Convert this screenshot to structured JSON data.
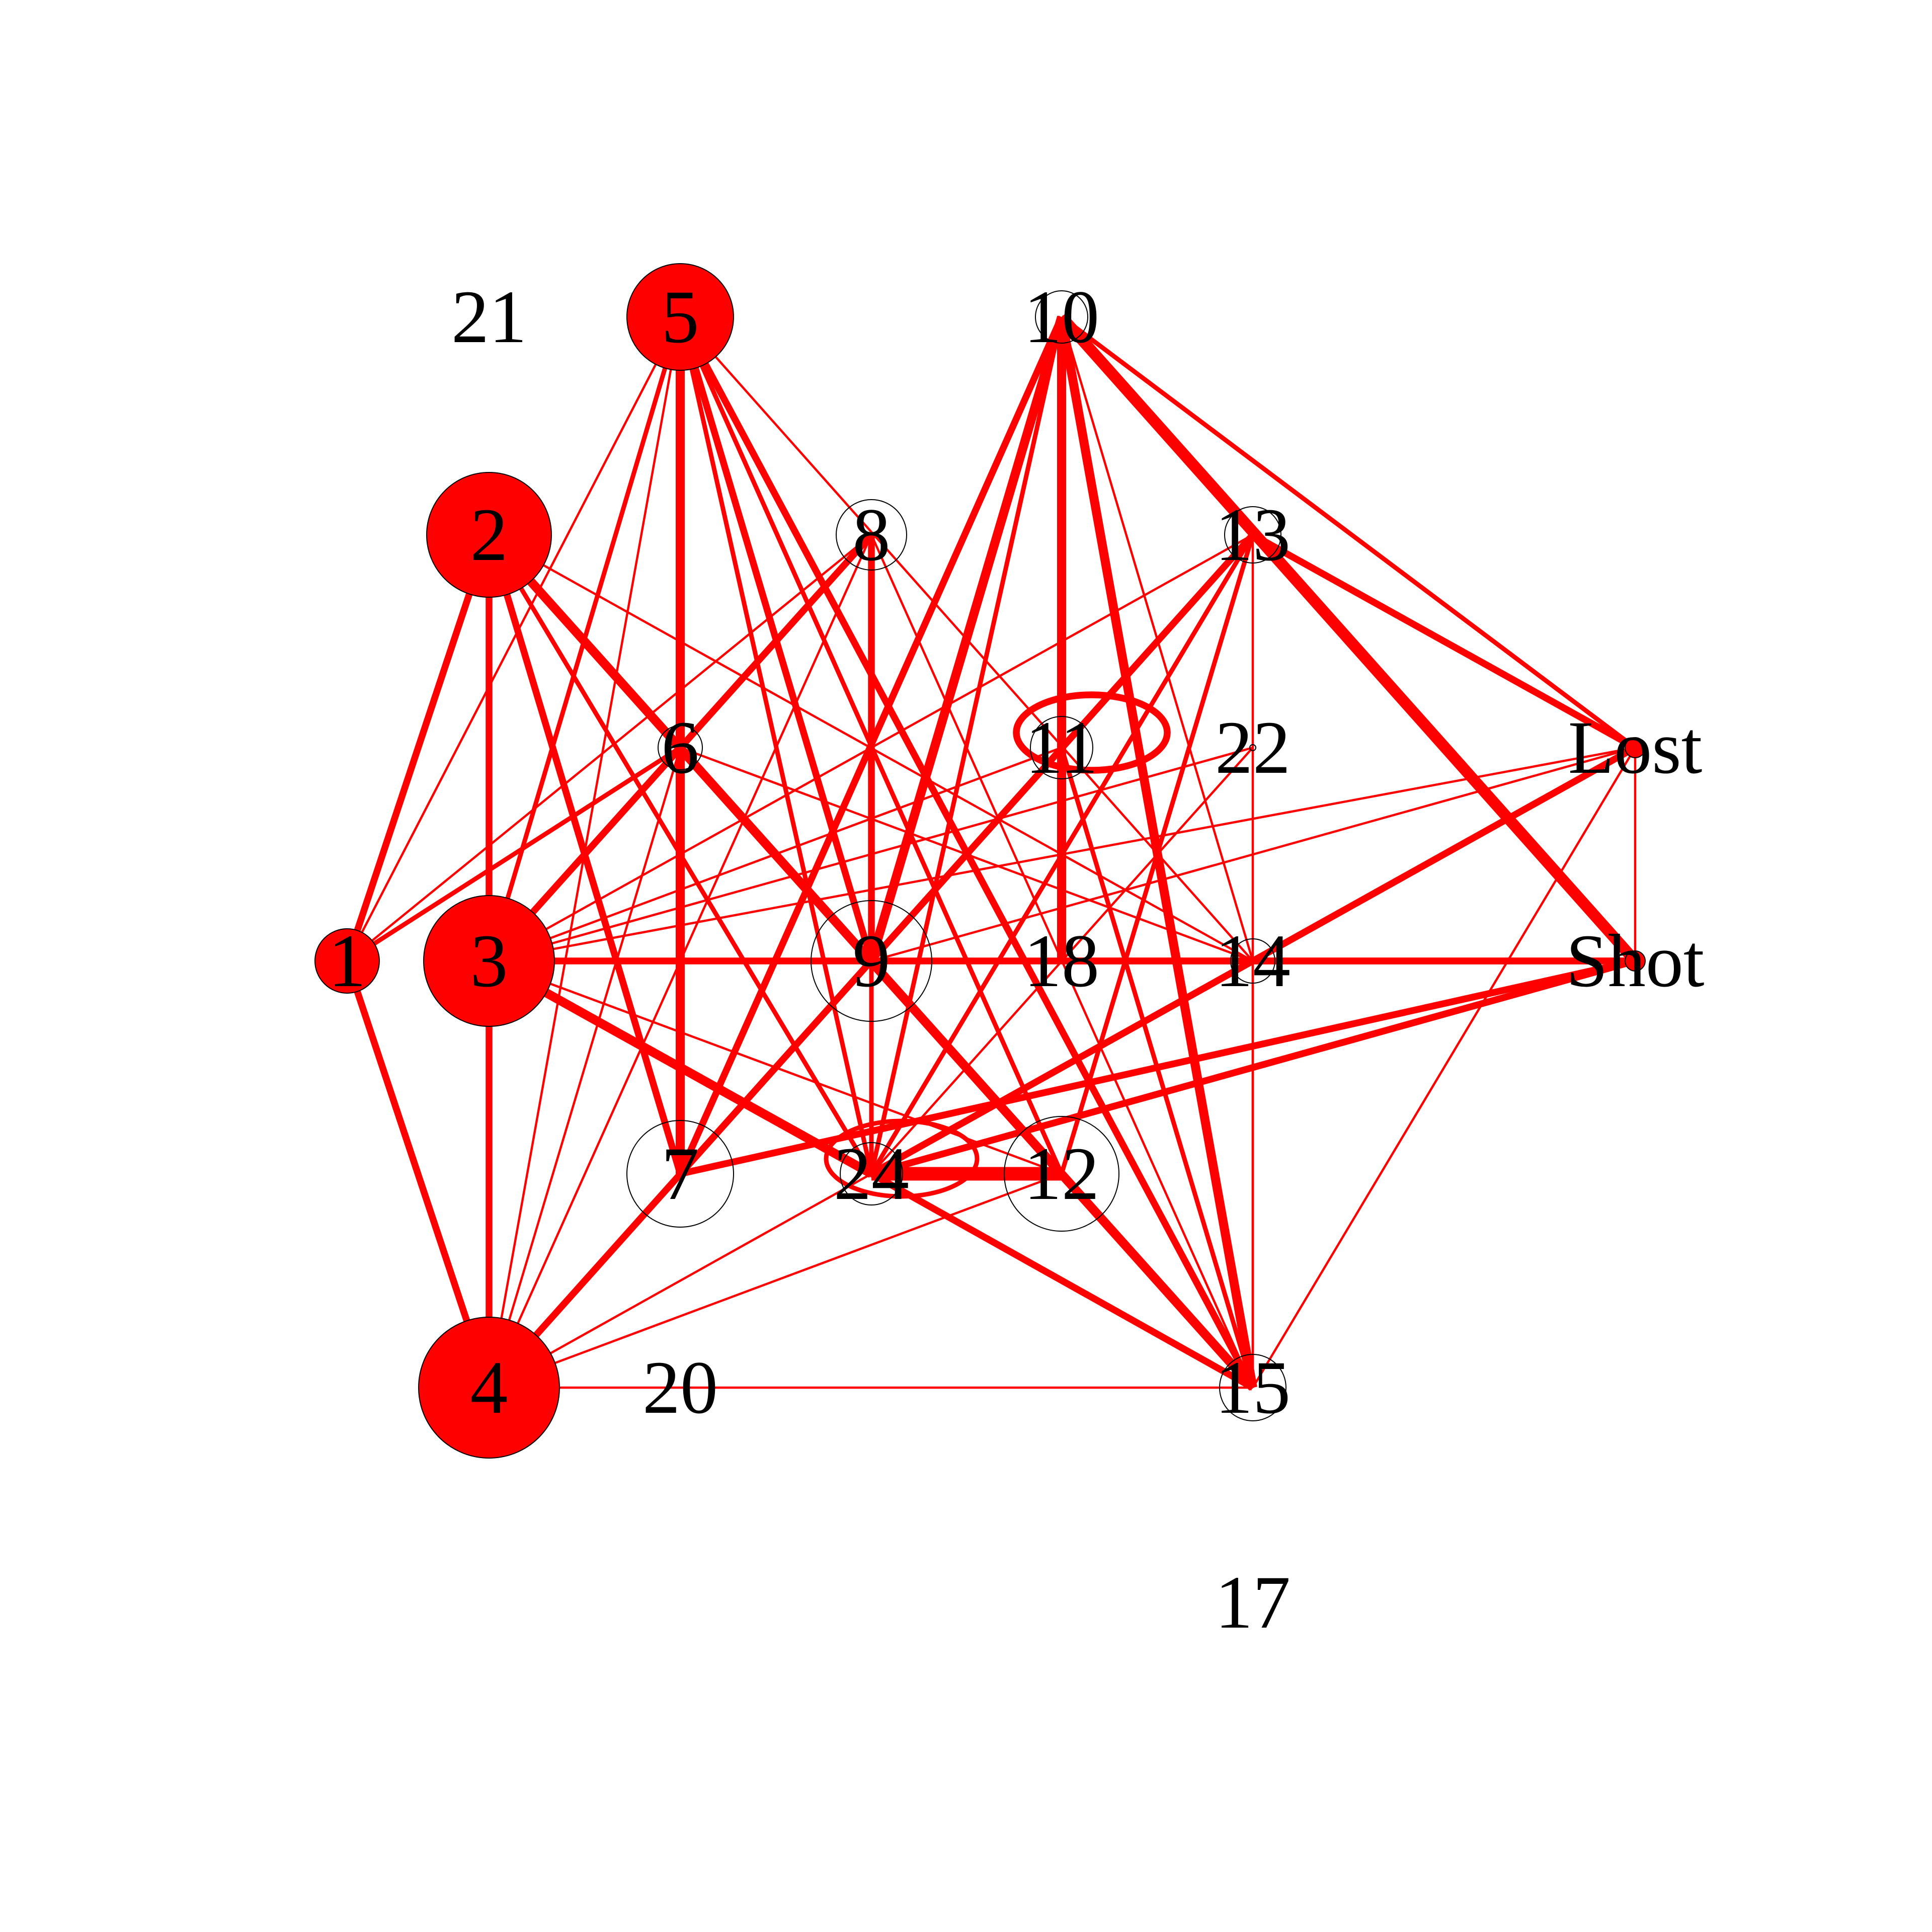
{
  "graph": {
    "type": "network",
    "directed": false,
    "colors": {
      "edge": "#ff0000",
      "node_filled": "#ff0000",
      "node_empty": "#ffffff",
      "node_border": "#000000",
      "label": "#000000"
    },
    "nodes": [
      {
        "id": "1",
        "label": "1",
        "filled": true,
        "size": 0.32
      },
      {
        "id": "2",
        "label": "2",
        "filled": true,
        "size": 0.62
      },
      {
        "id": "3",
        "label": "3",
        "filled": true,
        "size": 0.65
      },
      {
        "id": "4",
        "label": "4",
        "filled": true,
        "size": 0.7
      },
      {
        "id": "5",
        "label": "5",
        "filled": true,
        "size": 0.53
      },
      {
        "id": "6",
        "label": "6",
        "filled": false,
        "size": 0.22
      },
      {
        "id": "7",
        "label": "7",
        "filled": false,
        "size": 0.53
      },
      {
        "id": "8",
        "label": "8",
        "filled": false,
        "size": 0.35
      },
      {
        "id": "9",
        "label": "9",
        "filled": false,
        "size": 0.6
      },
      {
        "id": "10",
        "label": "10",
        "filled": false,
        "size": 0.26
      },
      {
        "id": "11",
        "label": "11",
        "filled": false,
        "size": 0.31
      },
      {
        "id": "12",
        "label": "12",
        "filled": false,
        "size": 0.57
      },
      {
        "id": "13",
        "label": "13",
        "filled": false,
        "size": 0.28
      },
      {
        "id": "14",
        "label": "14",
        "filled": false,
        "size": 0.22
      },
      {
        "id": "15",
        "label": "15",
        "filled": false,
        "size": 0.33
      },
      {
        "id": "17",
        "label": "17",
        "filled": false,
        "size": 0.0
      },
      {
        "id": "18",
        "label": "18",
        "filled": false,
        "size": 0.0
      },
      {
        "id": "20",
        "label": "20",
        "filled": false,
        "size": 0.0
      },
      {
        "id": "21",
        "label": "21",
        "filled": false,
        "size": 0.0
      },
      {
        "id": "22",
        "label": "22",
        "filled": false,
        "size": 0.03
      },
      {
        "id": "24",
        "label": "24",
        "filled": false,
        "size": 0.31
      },
      {
        "id": "Lost",
        "label": "Lost",
        "filled": true,
        "size": 0.1
      },
      {
        "id": "Shot",
        "label": "Shot",
        "filled": true,
        "size": 0.1
      }
    ],
    "edges": [
      {
        "source": "1",
        "target": "2",
        "weight": 3
      },
      {
        "source": "1",
        "target": "4",
        "weight": 3
      },
      {
        "source": "2",
        "target": "3",
        "weight": 3
      },
      {
        "source": "2",
        "target": "9",
        "weight": 3
      },
      {
        "source": "2",
        "target": "12",
        "weight": 3
      },
      {
        "source": "2",
        "target": "15",
        "weight": 4
      },
      {
        "source": "2",
        "target": "24",
        "weight": 2
      },
      {
        "source": "2",
        "target": "7",
        "weight": 3
      },
      {
        "source": "2",
        "target": "14",
        "weight": 1
      },
      {
        "source": "3",
        "target": "4",
        "weight": 3
      },
      {
        "source": "3",
        "target": "5",
        "weight": 2
      },
      {
        "source": "3",
        "target": "8",
        "weight": 3
      },
      {
        "source": "3",
        "target": "13",
        "weight": 1
      },
      {
        "source": "3",
        "target": "22",
        "weight": 1
      },
      {
        "source": "3",
        "target": "Lost",
        "weight": 1
      },
      {
        "source": "3",
        "target": "Shot",
        "weight": 3
      },
      {
        "source": "3",
        "target": "24",
        "weight": 4
      },
      {
        "source": "3",
        "target": "12",
        "weight": 1
      },
      {
        "source": "3",
        "target": "11",
        "weight": 1
      },
      {
        "source": "4",
        "target": "5",
        "weight": 1
      },
      {
        "source": "4",
        "target": "6",
        "weight": 1
      },
      {
        "source": "4",
        "target": "8",
        "weight": 1
      },
      {
        "source": "4",
        "target": "13",
        "weight": 3
      },
      {
        "source": "4",
        "target": "15",
        "weight": 1
      },
      {
        "source": "4",
        "target": "24",
        "weight": 1
      },
      {
        "source": "4",
        "target": "11",
        "weight": 1
      },
      {
        "source": "4",
        "target": "12",
        "weight": 1
      },
      {
        "source": "5",
        "target": "7",
        "weight": 4
      },
      {
        "source": "5",
        "target": "9",
        "weight": 3
      },
      {
        "source": "5",
        "target": "14",
        "weight": 1
      },
      {
        "source": "5",
        "target": "24",
        "weight": 2
      },
      {
        "source": "5",
        "target": "15",
        "weight": 3
      },
      {
        "source": "5",
        "target": "12",
        "weight": 2
      },
      {
        "source": "5",
        "target": "1",
        "weight": 1
      },
      {
        "source": "6",
        "target": "1",
        "weight": 2
      },
      {
        "source": "6",
        "target": "14",
        "weight": 1
      },
      {
        "source": "8",
        "target": "1",
        "weight": 1
      },
      {
        "source": "8",
        "target": "9",
        "weight": 3
      },
      {
        "source": "8",
        "target": "24",
        "weight": 2
      },
      {
        "source": "8",
        "target": "15",
        "weight": 1
      },
      {
        "source": "9",
        "target": "14",
        "weight": 1
      },
      {
        "source": "9",
        "target": "Lost",
        "weight": 1
      },
      {
        "source": "9",
        "target": "11",
        "weight": 1
      },
      {
        "source": "10",
        "target": "9",
        "weight": 4
      },
      {
        "source": "10",
        "target": "7",
        "weight": 3
      },
      {
        "source": "10",
        "target": "18",
        "weight": 4
      },
      {
        "source": "10",
        "target": "15",
        "weight": 4
      },
      {
        "source": "10",
        "target": "Shot",
        "weight": 5
      },
      {
        "source": "10",
        "target": "Lost",
        "weight": 2
      },
      {
        "source": "10",
        "target": "24",
        "weight": 2
      },
      {
        "source": "10",
        "target": "14",
        "weight": 1
      },
      {
        "source": "11",
        "target": "15",
        "weight": 2
      },
      {
        "source": "12",
        "target": "13",
        "weight": 2
      },
      {
        "source": "12",
        "target": "15",
        "weight": 3
      },
      {
        "source": "13",
        "target": "15",
        "weight": 1
      },
      {
        "source": "13",
        "target": "24",
        "weight": 2
      },
      {
        "source": "13",
        "target": "Lost",
        "weight": 3
      },
      {
        "source": "13",
        "target": "9",
        "weight": 1
      },
      {
        "source": "14",
        "target": "24",
        "weight": 1
      },
      {
        "source": "14",
        "target": "15",
        "weight": 1
      },
      {
        "source": "22",
        "target": "24",
        "weight": 1
      },
      {
        "source": "24",
        "target": "15",
        "weight": 3
      },
      {
        "source": "24",
        "target": "Lost",
        "weight": 3
      },
      {
        "source": "24",
        "target": "Shot",
        "weight": 3
      },
      {
        "source": "24",
        "target": "12",
        "weight": 6
      },
      {
        "source": "7",
        "target": "Shot",
        "weight": 3
      },
      {
        "source": "Lost",
        "target": "15",
        "weight": 1
      },
      {
        "source": "Lost",
        "target": "Shot",
        "weight": 1
      },
      {
        "source": "18",
        "target": "Shot",
        "weight": 3
      }
    ],
    "loops": [
      {
        "node": "11",
        "weight": 3
      },
      {
        "node": "24",
        "weight": 2
      }
    ]
  }
}
